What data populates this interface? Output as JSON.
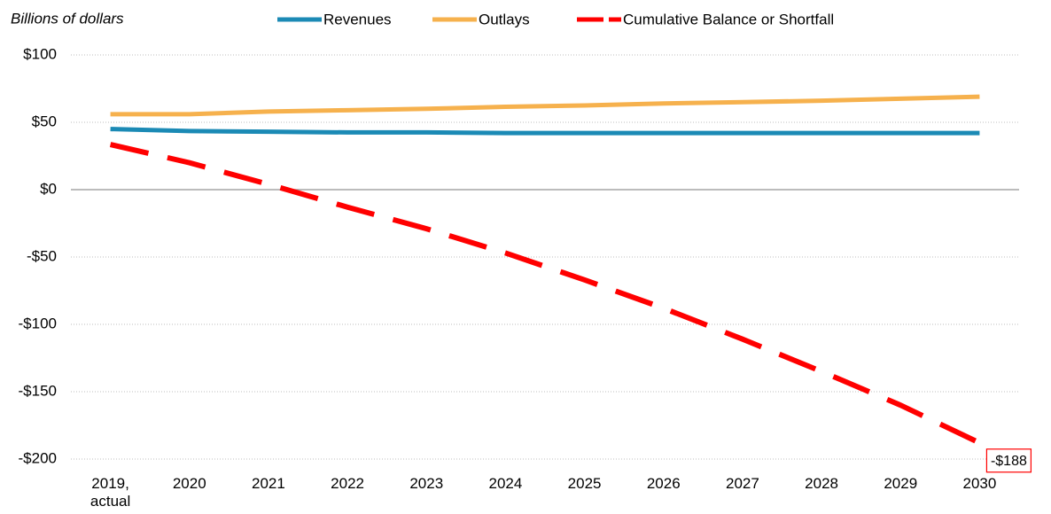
{
  "chart_data": {
    "type": "line",
    "y_axis_label": "Billions of dollars",
    "categories": [
      "2019, actual",
      "2020",
      "2021",
      "2022",
      "2023",
      "2024",
      "2025",
      "2026",
      "2027",
      "2028",
      "2029",
      "2030"
    ],
    "series": [
      {
        "name": "Revenues",
        "color": "#1b8ab5",
        "dashed": false,
        "values": [
          45,
          43.5,
          43,
          42.5,
          42.5,
          42,
          42,
          42,
          42,
          42,
          42,
          42
        ]
      },
      {
        "name": "Outlays",
        "color": "#f6b14d",
        "dashed": false,
        "values": [
          56,
          56,
          58,
          59,
          60,
          61.5,
          62.5,
          64,
          65,
          66,
          67.5,
          69
        ]
      },
      {
        "name": "Cumulative Balance or Shortfall",
        "color": "#ff0000",
        "dashed": true,
        "values": [
          33.5,
          20,
          4,
          -13,
          -29,
          -47,
          -67,
          -88,
          -111,
          -135,
          -160,
          -188
        ],
        "value_labels": [
          null,
          null,
          null,
          null,
          null,
          null,
          null,
          null,
          null,
          null,
          null,
          "-$188"
        ]
      }
    ],
    "ylim": [
      -200,
      100
    ],
    "yticks": [
      {
        "value": 100,
        "label": "$100"
      },
      {
        "value": 50,
        "label": "$50"
      },
      {
        "value": 0,
        "label": "$0"
      },
      {
        "value": -50,
        "label": "-$50"
      },
      {
        "value": -100,
        "label": "-$100"
      },
      {
        "value": -150,
        "label": "-$150"
      },
      {
        "value": -200,
        "label": "-$200"
      }
    ],
    "grid": true
  }
}
